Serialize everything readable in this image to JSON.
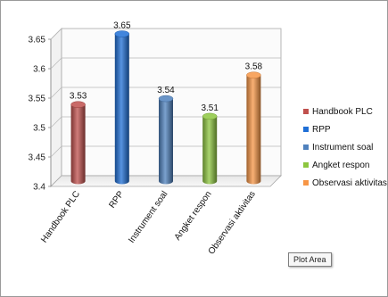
{
  "chart_data": {
    "type": "bar",
    "style": "3d-cylinder",
    "categories": [
      "Handbook PLC",
      "RPP",
      "Instrument soal",
      "Angket respon",
      "Observasi aktivitas"
    ],
    "values": [
      3.53,
      3.65,
      3.54,
      3.51,
      3.58
    ],
    "data_labels": [
      "3.53",
      "3.65",
      "3.54",
      "3.51",
      "3.58"
    ],
    "colors": [
      "#C0504D",
      "#1F6FD6",
      "#4F81BD",
      "#8DC63F",
      "#F79646"
    ],
    "ylim": [
      3.4,
      3.65
    ],
    "yticks": [
      "3.4",
      "3.45",
      "3.5",
      "3.55",
      "3.6",
      "3.65"
    ],
    "ytick_values": [
      3.4,
      3.45,
      3.5,
      3.55,
      3.6,
      3.65
    ],
    "legend": {
      "placement": "right",
      "entries": [
        "Handbook PLC",
        "RPP",
        "Instrument soal",
        "Angket respon",
        "Observasi aktivitas"
      ]
    },
    "grid": true,
    "title": "",
    "xlabel": "",
    "ylabel": ""
  },
  "tooltip": {
    "text": "Plot Area"
  }
}
